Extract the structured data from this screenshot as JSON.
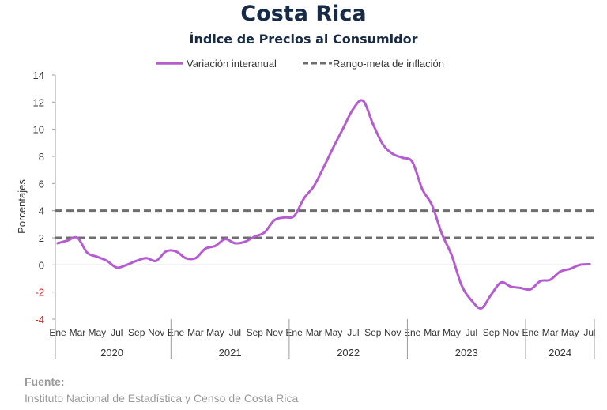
{
  "chart_data": {
    "type": "line",
    "title": "Costa Rica",
    "subtitle": "Índice de Precios al Consumidor",
    "ylabel": "Porcentajes",
    "ylim": [
      -4,
      14
    ],
    "yticks": [
      -4,
      -2,
      0,
      2,
      4,
      6,
      8,
      10,
      12,
      14
    ],
    "negative_tick_color": "#e02020",
    "legend_position": "top-center",
    "years": [
      "2020",
      "2021",
      "2022",
      "2023",
      "2024"
    ],
    "month_labels": [
      "Ene",
      "Mar",
      "May",
      "Jul",
      "Sep",
      "Nov"
    ],
    "last_year_month_labels": [
      "Ene",
      "Mar",
      "May",
      "Jul"
    ],
    "series": [
      {
        "name": "Variación interanual",
        "color": "#b45cd0",
        "style": "solid",
        "x": [
          "2020-01",
          "2020-02",
          "2020-03",
          "2020-04",
          "2020-05",
          "2020-06",
          "2020-07",
          "2020-08",
          "2020-09",
          "2020-10",
          "2020-11",
          "2020-12",
          "2021-01",
          "2021-02",
          "2021-03",
          "2021-04",
          "2021-05",
          "2021-06",
          "2021-07",
          "2021-08",
          "2021-09",
          "2021-10",
          "2021-11",
          "2021-12",
          "2022-01",
          "2022-02",
          "2022-03",
          "2022-04",
          "2022-05",
          "2022-06",
          "2022-07",
          "2022-08",
          "2022-09",
          "2022-10",
          "2022-11",
          "2022-12",
          "2023-01",
          "2023-02",
          "2023-03",
          "2023-04",
          "2023-05",
          "2023-06",
          "2023-07",
          "2023-08",
          "2023-09",
          "2023-10",
          "2023-11",
          "2023-12",
          "2024-01",
          "2024-02",
          "2024-03",
          "2024-04",
          "2024-05",
          "2024-06",
          "2024-07"
        ],
        "values": [
          1.6,
          1.8,
          2.0,
          0.9,
          0.6,
          0.3,
          -0.2,
          0.0,
          0.3,
          0.5,
          0.3,
          1.0,
          1.0,
          0.5,
          0.5,
          1.2,
          1.4,
          1.9,
          1.6,
          1.7,
          2.1,
          2.4,
          3.3,
          3.5,
          3.6,
          4.9,
          5.8,
          7.2,
          8.7,
          10.1,
          11.5,
          12.1,
          10.4,
          8.9,
          8.2,
          7.9,
          7.6,
          5.6,
          4.4,
          2.3,
          0.7,
          -1.5,
          -2.6,
          -3.2,
          -2.2,
          -1.3,
          -1.6,
          -1.7,
          -1.8,
          -1.2,
          -1.1,
          -0.5,
          -0.3,
          0.0,
          0.05
        ]
      },
      {
        "name": "Rango-meta de inflación",
        "color": "#6e6e6e",
        "style": "dashed",
        "lines": [
          2,
          4
        ]
      }
    ]
  },
  "source": {
    "label": "Fuente:",
    "text": "Instituto Nacional de Estadística y Censo de Costa Rica"
  }
}
